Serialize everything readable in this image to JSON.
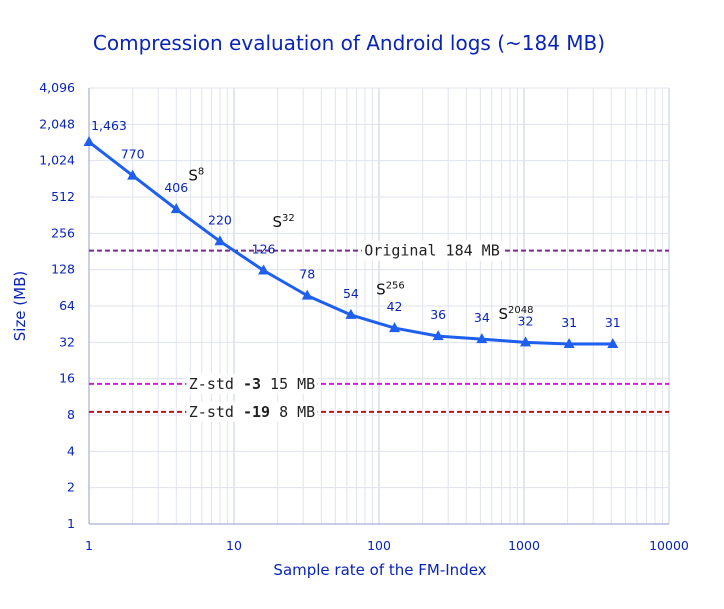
{
  "chart_data": {
    "type": "line",
    "title": "Compression evaluation of Android logs (~184 MB)",
    "xlabel": "Sample rate of the FM-Index",
    "ylabel": "Size (MB)",
    "x_scale": "log10",
    "y_scale": "log2",
    "xlim": [
      1,
      10000
    ],
    "ylim": [
      1,
      4096
    ],
    "x_ticks": [
      "1",
      "10",
      "100",
      "1000",
      "10000"
    ],
    "y_ticks": [
      "1",
      "2",
      "4",
      "8",
      "16",
      "32",
      "64",
      "128",
      "256",
      "512",
      "1,024",
      "2,048",
      "4,096"
    ],
    "grid": true,
    "series": [
      {
        "color": "#1f5ff0",
        "marker": "triangle",
        "x": [
          1,
          2,
          4,
          8,
          16,
          32,
          64,
          128,
          256,
          512,
          1024,
          2048,
          4096
        ],
        "values": [
          1463,
          770,
          406,
          220,
          126,
          78,
          54,
          42,
          36,
          34,
          32,
          31,
          31
        ],
        "labels": [
          "1,463",
          "770",
          "406",
          "220",
          "126",
          "78",
          "54",
          "42",
          "36",
          "34",
          "32",
          "31",
          "31"
        ]
      }
    ],
    "reference_lines": [
      {
        "value": 184,
        "color": "#7a2a8f",
        "parts": [
          {
            "text": "Original 184 MB",
            "bold": false
          }
        ]
      },
      {
        "value": 14.5,
        "color": "#d21dd2",
        "parts": [
          {
            "text": "Z-std ",
            "bold": false
          },
          {
            "text": "-3",
            "bold": true
          },
          {
            "text": " 15 MB",
            "bold": false
          }
        ]
      },
      {
        "value": 8.5,
        "color": "#c01010",
        "parts": [
          {
            "text": "Z-std ",
            "bold": false
          },
          {
            "text": "-19",
            "bold": true
          },
          {
            "text": " 8 MB",
            "bold": false
          }
        ]
      }
    ],
    "annotations": [
      {
        "base": "S",
        "sup": "8",
        "x": 5.5,
        "y": 700
      },
      {
        "base": "S",
        "sup": "32",
        "x": 22,
        "y": 290
      },
      {
        "base": "S",
        "sup": "256",
        "x": 120,
        "y": 80
      },
      {
        "base": "S",
        "sup": "2048",
        "x": 880,
        "y": 50
      }
    ],
    "colors": {
      "text": "#0a24b8",
      "grid_major": "#c4cce6",
      "grid_minor": "#dfe3ef",
      "axis": "#a6aed6"
    }
  }
}
